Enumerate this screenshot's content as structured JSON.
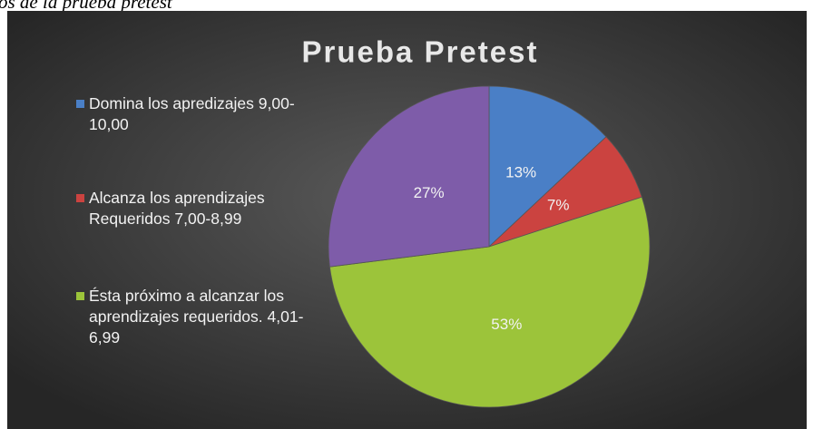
{
  "caption": "os de la prueba pretest",
  "chart_data": {
    "type": "pie",
    "title": "Prueba Pretest",
    "series": [
      {
        "name": "Domina los apredizajes 9,00-10,00",
        "color": "#4a7fc6",
        "values": [
          13
        ],
        "value_labels": [
          "13%"
        ]
      },
      {
        "name": "Alcanza los aprendizajes Requeridos 7,00-8,99",
        "color": "#cb4340",
        "values": [
          7
        ],
        "value_labels": [
          "7%"
        ]
      },
      {
        "name": "Ésta próximo a alcanzar los aprendizajes requeridos. 4,01-6,99",
        "color": "#9cc43a",
        "values": [
          53
        ],
        "value_labels": [
          "53%"
        ]
      },
      {
        "name": "",
        "color": "#7e5ca9",
        "values": [
          27
        ],
        "value_labels": [
          "27%"
        ]
      }
    ],
    "legend": "left"
  }
}
